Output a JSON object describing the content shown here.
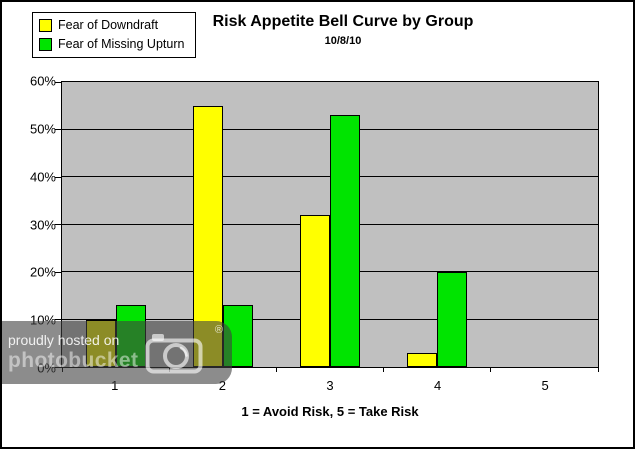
{
  "chart_data": {
    "type": "bar",
    "title": "Risk Appetite Bell Curve by Group",
    "subtitle": "10/8/10",
    "xlabel": "1 = Avoid Risk, 5 = Take Risk",
    "ylabel": "",
    "categories": [
      "1",
      "2",
      "3",
      "4",
      "5"
    ],
    "series": [
      {
        "name": "Fear of Downdraft",
        "color": "#FFFF00",
        "values": [
          10,
          55,
          32,
          3,
          0
        ]
      },
      {
        "name": "Fear of Missing Upturn",
        "color": "#00E400",
        "values": [
          13,
          13,
          53,
          20,
          0
        ]
      }
    ],
    "ylim": [
      0,
      60
    ],
    "yticks": [
      0,
      10,
      20,
      30,
      40,
      50,
      60
    ],
    "y_suffix": "%",
    "grid": "horizontal",
    "legend_position": "top-left",
    "plot_background": "#C0C0C0"
  },
  "watermark": {
    "line1": "proudly hosted on",
    "line2": "photobucket",
    "registered": "®"
  }
}
